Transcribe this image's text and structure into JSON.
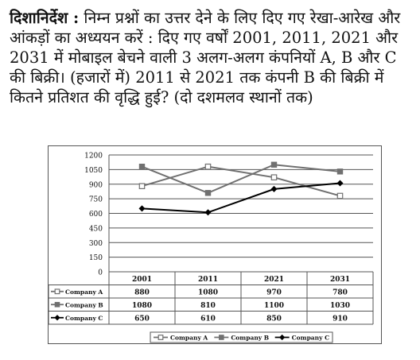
{
  "question": {
    "heading": "दिशानिर्देश :",
    "text": "निम्न प्रश्नों का उत्तर देने के लिए दिए गए रेखा-आरेख और आंकड़ों का अध्ययन करें : दिए गए वर्षों 2001, 2011, 2021 और 2031 में मोबाइल बेचने वाली 3 अलग-अलग कंपनियों A, B और C की बिक्री। (हजारों में) 2011 से 2021 तक कंपनी B की बिक्री में कितने प्रतिशत की वृद्धि हुई? (दो दशमलव स्थानों तक)"
  },
  "chart_data": {
    "type": "line",
    "categories": [
      "2001",
      "2011",
      "2021",
      "2031"
    ],
    "series": [
      {
        "name": "Company A",
        "values": [
          880,
          1080,
          970,
          780
        ],
        "color": "#707070",
        "marker": "open-square"
      },
      {
        "name": "Company B",
        "values": [
          1080,
          810,
          1100,
          1030
        ],
        "color": "#707070",
        "marker": "filled-square"
      },
      {
        "name": "Company C",
        "values": [
          650,
          610,
          850,
          910
        ],
        "color": "#000000",
        "marker": "diamond"
      }
    ],
    "yticks": [
      "0",
      "150",
      "300",
      "450",
      "600",
      "750",
      "900",
      "1050",
      "1200"
    ],
    "ylim": [
      0,
      1200
    ],
    "grid": true,
    "legend_position": "bottom",
    "data_table": true
  }
}
